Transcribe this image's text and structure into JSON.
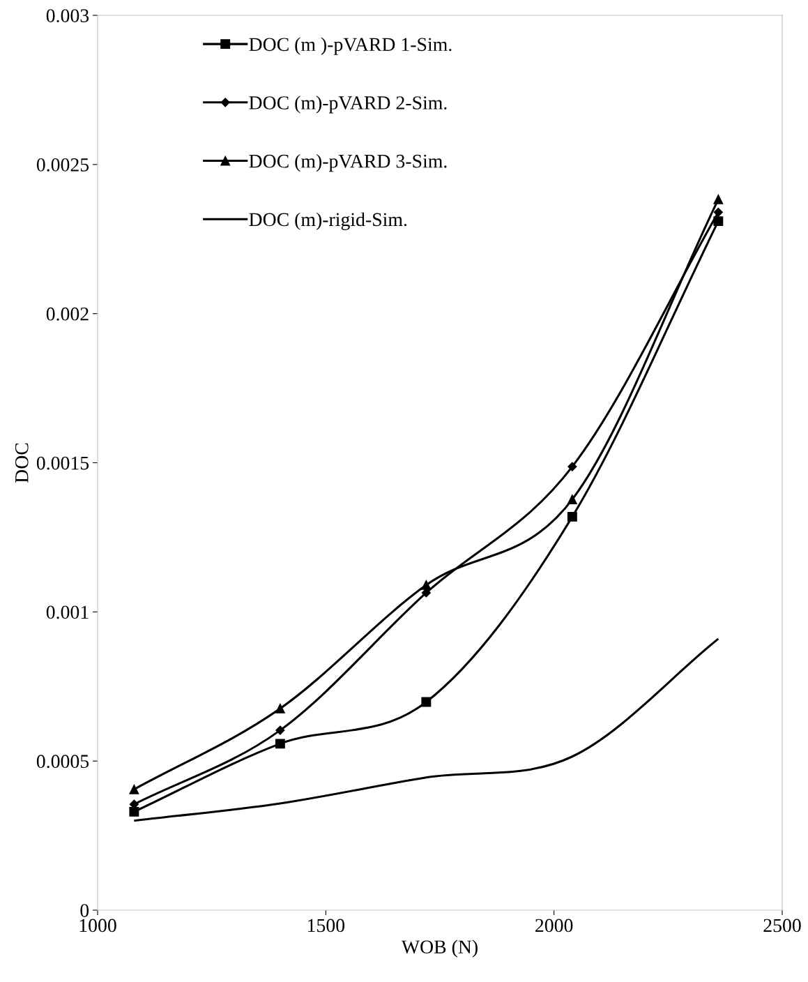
{
  "chart_data": {
    "type": "line",
    "xlabel": "WOB (N)",
    "ylabel": "DOC",
    "xlim": [
      1000,
      2500
    ],
    "xticks": [
      1000,
      1500,
      2000,
      2500
    ],
    "ylim": [
      0,
      0.003
    ],
    "yticks": [
      0,
      0.0005,
      0.001,
      0.0015,
      0.002,
      0.0025,
      0.003
    ],
    "grid": false,
    "legend": "top left",
    "x": [
      1080,
      1400,
      1720,
      2040,
      2360
    ],
    "series": [
      {
        "name": "DOC (m )-pVARD 1-Sim.",
        "color": "#000000",
        "marker": "square",
        "values": [
          0.00033,
          0.000558,
          0.000698,
          0.001319,
          0.00231
        ]
      },
      {
        "name": "DOC (m)-pVARD 2-Sim.",
        "color": "#000000",
        "marker": "diamond",
        "values": [
          0.000355,
          0.000603,
          0.001064,
          0.001487,
          0.00234
        ]
      },
      {
        "name": "DOC (m)-pVARD 3-Sim.",
        "color": "#000000",
        "marker": "triangle",
        "values": [
          0.000405,
          0.000676,
          0.00109,
          0.001377,
          0.002383
        ]
      },
      {
        "name": "DOC (m)-rigid-Sim.",
        "color": "#000000",
        "marker": "none",
        "values": [
          0.0003,
          0.000358,
          0.000445,
          0.000515,
          0.00091
        ]
      }
    ]
  }
}
